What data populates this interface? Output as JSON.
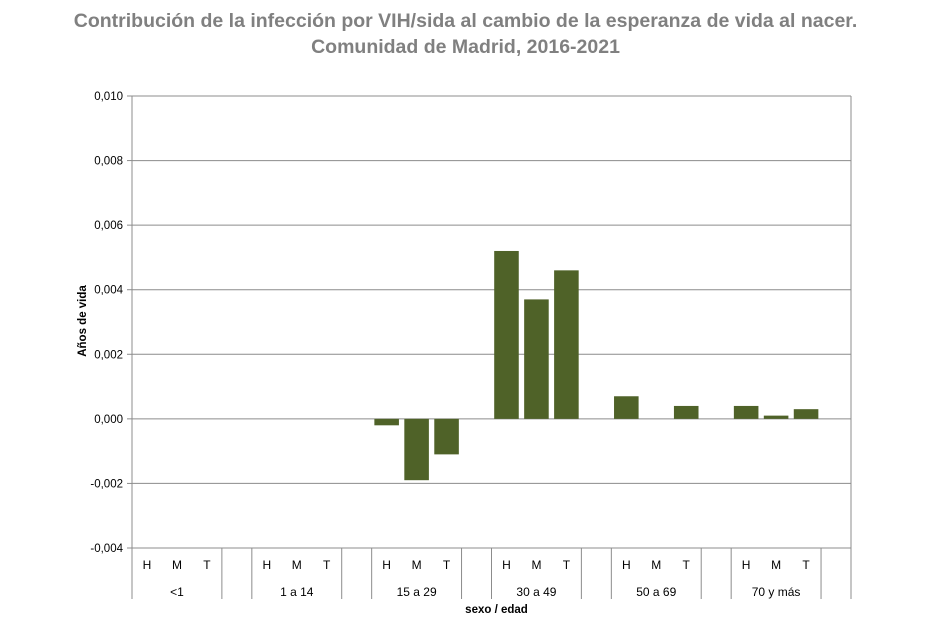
{
  "chart_data": {
    "type": "bar",
    "title_line1": "Contribución de la infección por VIH/sida al cambio de la esperanza de vida al nacer.",
    "title_line2": "Comunidad de Madrid, 2016-2021",
    "ylabel": "Años de vida",
    "xlabel": "sexo / edad",
    "ylim": [
      -0.004,
      0.01
    ],
    "yticks": [
      "0,010",
      "0,008",
      "0,006",
      "0,004",
      "0,002",
      "0,000",
      "-0,002",
      "-0,004"
    ],
    "ytick_values": [
      0.01,
      0.008,
      0.006,
      0.004,
      0.002,
      0.0,
      -0.002,
      -0.004
    ],
    "grid": true,
    "legend": "none",
    "bar_color": "#4f6228",
    "groups": [
      {
        "label": "<1",
        "sexes": [
          "H",
          "M",
          "T"
        ],
        "values": [
          0.0,
          0.0,
          0.0
        ]
      },
      {
        "label": "1 a 14",
        "sexes": [
          "H",
          "M",
          "T"
        ],
        "values": [
          0.0,
          0.0,
          0.0
        ]
      },
      {
        "label": "15 a 29",
        "sexes": [
          "H",
          "M",
          "T"
        ],
        "values": [
          -0.0002,
          -0.0019,
          -0.0011
        ]
      },
      {
        "label": "30 a 49",
        "sexes": [
          "H",
          "M",
          "T"
        ],
        "values": [
          0.0052,
          0.0037,
          0.0046
        ]
      },
      {
        "label": "50 a 69",
        "sexes": [
          "H",
          "M",
          "T"
        ],
        "values": [
          0.0007,
          0.0,
          0.0004
        ]
      },
      {
        "label": "70 y más",
        "sexes": [
          "H",
          "M",
          "T"
        ],
        "values": [
          0.0004,
          0.0001,
          0.0003
        ]
      }
    ]
  }
}
